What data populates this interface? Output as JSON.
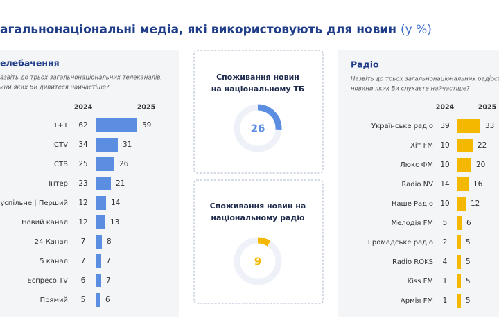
{
  "header": {
    "title": "агальнонаціональні медіа, які використовують для новин",
    "unit": "(у %)"
  },
  "chart_data": [
    {
      "type": "bar",
      "title": "елебачення",
      "subtitle": [
        "азвіть до трьох загальнонаціональних телеканалів,",
        "ини яких Ви дивитеся найчастіше?"
      ],
      "categories": [
        "1+1",
        "ICTV",
        "СТБ",
        "Інтер",
        "Суспільне | Перший",
        "Новий канал",
        "24 Канал",
        "5 канал",
        "Еспресо.TV",
        "Прямий"
      ],
      "series": [
        {
          "name": "2024",
          "values": [
            62,
            34,
            25,
            23,
            12,
            12,
            7,
            7,
            6,
            5
          ]
        },
        {
          "name": "2025",
          "color": "#5b8de0",
          "values": [
            59,
            31,
            26,
            21,
            14,
            13,
            8,
            7,
            7,
            6
          ]
        }
      ]
    },
    {
      "type": "bar",
      "title": "Радіо",
      "subtitle": [
        "Назвіть до трьох загальнонаціональних радіостанцій",
        "новини яких Ви слухаєте найчастіше?"
      ],
      "categories": [
        "Українське радіо",
        "Хіт FM",
        "Люкс ФМ",
        "Radio NV",
        "Наше Радіо",
        "Мелодія FM",
        "Громадське радіо",
        "Radio ROKS",
        "Kiss FM",
        "Армія FM"
      ],
      "series": [
        {
          "name": "2024",
          "values": [
            39,
            10,
            10,
            14,
            10,
            5,
            2,
            4,
            1,
            1
          ]
        },
        {
          "name": "2025",
          "color": "#f5b800",
          "values": [
            33,
            22,
            20,
            16,
            12,
            6,
            5,
            5,
            5,
            5
          ]
        }
      ]
    },
    {
      "type": "donut",
      "title": [
        "Споживання новин",
        "на національному ТБ"
      ],
      "value": 26,
      "color": "#5b8de0"
    },
    {
      "type": "donut",
      "title": [
        "Споживання новин на",
        "національному радіо"
      ],
      "value": 9,
      "color": "#f5b800"
    }
  ]
}
